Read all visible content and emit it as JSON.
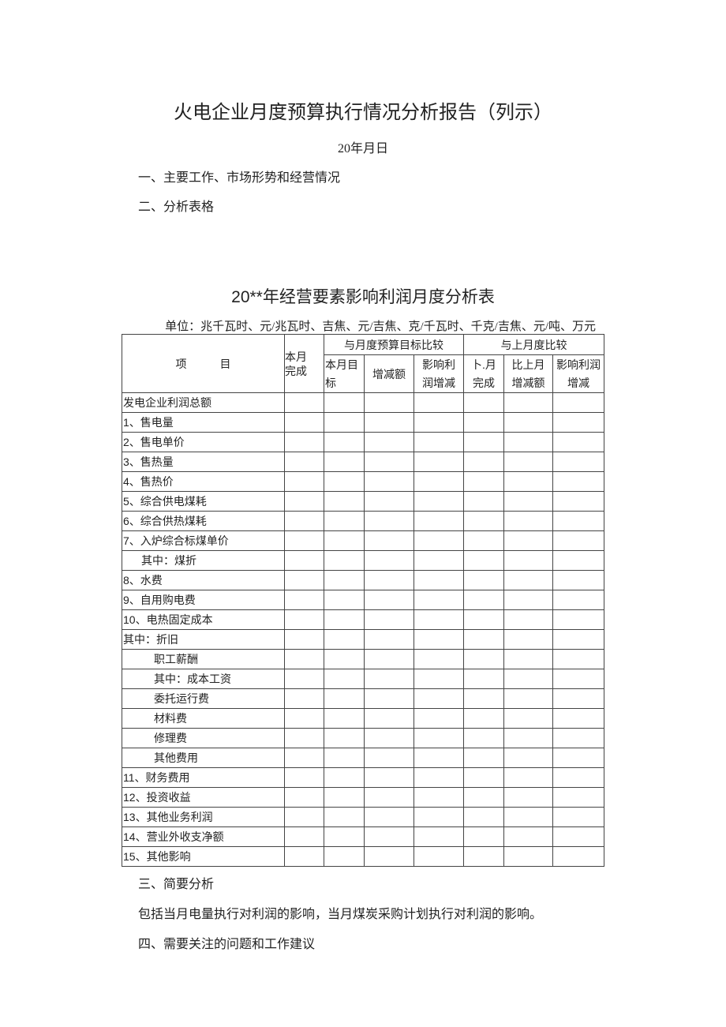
{
  "title": "火电企业月度预算执行情况分析报告（列示）",
  "date": "20年月日",
  "sections": {
    "s1": "一、主要工作、市场形势和经营情况",
    "s2": "二、分析表格",
    "s3": "三、简要分析",
    "s3_body": "包括当月电量执行对利润的影响，当月煤炭采购计划执行对利润的影响。",
    "s4": "四、需要关注的问题和工作建议"
  },
  "table": {
    "title": "20**年经营要素影响利润月度分析表",
    "unit": "单位：兆千瓦时、元/兆瓦时、吉焦、元/吉焦、克/千瓦时、千克/吉焦、元/吨、万元",
    "headers": {
      "item": "项　　　目",
      "current": "本月完成",
      "budget_group": "与月度预算目标比较",
      "budget_target": "本月目标",
      "budget_diff": "增减额",
      "budget_profit": "影响利润增减",
      "prev_group": "与上月度比较",
      "prev_done": "卜.月完成",
      "prev_diff": "比上月增减额",
      "prev_profit": "影响利润增减"
    },
    "rows": [
      "发电企业利润总额",
      "1、售电量",
      "2、售电单价",
      "3、售热量",
      "4、售热价",
      "5、综合供电煤耗",
      "6、综合供热煤耗",
      "7、入炉综合标煤单价",
      "其中：煤折",
      "8、水费",
      "9、自用购电费",
      "10、电热固定成本",
      "其中：折旧",
      "职工薪酬",
      "其中：成本工资",
      "委托运行费",
      "材料费",
      "修理费",
      "其他费用",
      "11、财务费用",
      "12、投资收益",
      "13、其他业务利润",
      "14、营业外收支净额",
      "15、其他影响"
    ]
  }
}
